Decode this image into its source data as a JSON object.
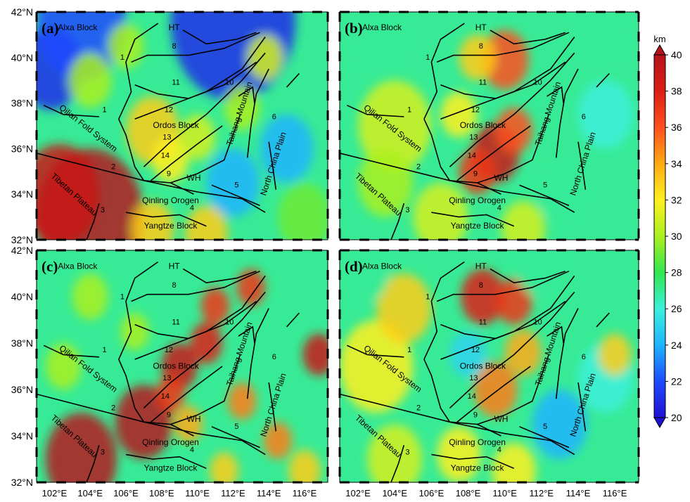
{
  "panels": [
    {
      "letter": "(a)",
      "field": [
        {
          "cx": 104.0,
          "cy": 33.0,
          "r": 3.0,
          "v": 40
        },
        {
          "cx": 102.3,
          "cy": 34.0,
          "r": 2.2,
          "v": 39
        },
        {
          "cx": 101.8,
          "cy": 39.5,
          "r": 1.8,
          "v": 21
        },
        {
          "cx": 103.5,
          "cy": 41.5,
          "r": 2.5,
          "v": 22
        },
        {
          "cx": 112.0,
          "cy": 41.6,
          "r": 3.5,
          "v": 21
        },
        {
          "cx": 104.0,
          "cy": 39.0,
          "r": 1.2,
          "v": 30
        },
        {
          "cx": 107.5,
          "cy": 36.8,
          "r": 1.5,
          "v": 33
        },
        {
          "cx": 108.5,
          "cy": 35.5,
          "r": 1.0,
          "v": 32
        },
        {
          "cx": 110.0,
          "cy": 36.5,
          "r": 1.0,
          "v": 31
        },
        {
          "cx": 113.8,
          "cy": 40.0,
          "r": 1.0,
          "v": 31
        },
        {
          "cx": 115.0,
          "cy": 36.0,
          "r": 1.5,
          "v": 24
        },
        {
          "cx": 112.0,
          "cy": 34.5,
          "r": 1.5,
          "v": 24
        },
        {
          "cx": 107.5,
          "cy": 32.5,
          "r": 1.2,
          "v": 33
        },
        {
          "cx": 110.5,
          "cy": 32.3,
          "r": 1.2,
          "v": 33
        },
        {
          "cx": 116.0,
          "cy": 33.0,
          "r": 1.5,
          "v": 29
        },
        {
          "cx": 106.0,
          "cy": 40.5,
          "r": 1.0,
          "v": 30
        },
        {
          "cx": 112.5,
          "cy": 37.8,
          "r": 1.0,
          "v": 30
        }
      ]
    },
    {
      "letter": "(b)",
      "field": [
        {
          "cx": 109.5,
          "cy": 35.8,
          "r": 1.3,
          "v": 39
        },
        {
          "cx": 108.5,
          "cy": 35.0,
          "r": 1.0,
          "v": 37
        },
        {
          "cx": 110.5,
          "cy": 36.8,
          "r": 1.0,
          "v": 36
        },
        {
          "cx": 110.0,
          "cy": 39.9,
          "r": 1.3,
          "v": 36
        },
        {
          "cx": 108.5,
          "cy": 40.0,
          "r": 1.0,
          "v": 33
        },
        {
          "cx": 104.0,
          "cy": 37.0,
          "r": 2.0,
          "v": 31
        },
        {
          "cx": 103.5,
          "cy": 34.5,
          "r": 1.5,
          "v": 30
        },
        {
          "cx": 106.5,
          "cy": 33.0,
          "r": 1.5,
          "v": 31
        },
        {
          "cx": 111.0,
          "cy": 32.5,
          "r": 1.2,
          "v": 31
        },
        {
          "cx": 115.5,
          "cy": 37.5,
          "r": 1.5,
          "v": 26
        },
        {
          "cx": 113.0,
          "cy": 34.0,
          "r": 1.2,
          "v": 27
        },
        {
          "cx": 103.0,
          "cy": 41.0,
          "r": 1.5,
          "v": 27
        },
        {
          "cx": 115.0,
          "cy": 41.0,
          "r": 1.5,
          "v": 27
        },
        {
          "cx": 107.5,
          "cy": 37.5,
          "r": 1.0,
          "v": 32
        }
      ]
    },
    {
      "letter": "(c)",
      "field": [
        {
          "cx": 103.5,
          "cy": 33.0,
          "r": 2.0,
          "v": 40
        },
        {
          "cx": 107.0,
          "cy": 34.6,
          "r": 1.6,
          "v": 40
        },
        {
          "cx": 109.0,
          "cy": 37.0,
          "r": 1.0,
          "v": 39
        },
        {
          "cx": 110.5,
          "cy": 38.0,
          "r": 0.9,
          "v": 38
        },
        {
          "cx": 111.0,
          "cy": 39.6,
          "r": 0.8,
          "v": 37
        },
        {
          "cx": 113.0,
          "cy": 40.4,
          "r": 0.8,
          "v": 37
        },
        {
          "cx": 116.8,
          "cy": 37.5,
          "r": 0.9,
          "v": 39
        },
        {
          "cx": 112.5,
          "cy": 35.5,
          "r": 0.8,
          "v": 35
        },
        {
          "cx": 114.5,
          "cy": 33.8,
          "r": 0.8,
          "v": 35
        },
        {
          "cx": 104.0,
          "cy": 40.0,
          "r": 1.0,
          "v": 30
        },
        {
          "cx": 102.5,
          "cy": 37.0,
          "r": 1.0,
          "v": 30
        },
        {
          "cx": 109.5,
          "cy": 34.5,
          "r": 0.8,
          "v": 34
        },
        {
          "cx": 116.0,
          "cy": 32.5,
          "r": 0.9,
          "v": 33
        },
        {
          "cx": 106.5,
          "cy": 38.5,
          "r": 0.8,
          "v": 30
        },
        {
          "cx": 111.5,
          "cy": 32.5,
          "r": 0.8,
          "v": 33
        },
        {
          "cx": 108.5,
          "cy": 35.8,
          "r": 0.8,
          "v": 37
        }
      ]
    },
    {
      "letter": "(d)",
      "field": [
        {
          "cx": 108.8,
          "cy": 40.0,
          "r": 1.2,
          "v": 38
        },
        {
          "cx": 110.5,
          "cy": 39.8,
          "r": 1.0,
          "v": 37
        },
        {
          "cx": 109.5,
          "cy": 36.0,
          "r": 1.2,
          "v": 35
        },
        {
          "cx": 111.0,
          "cy": 37.6,
          "r": 1.0,
          "v": 34
        },
        {
          "cx": 103.0,
          "cy": 37.0,
          "r": 2.0,
          "v": 32
        },
        {
          "cx": 104.5,
          "cy": 39.5,
          "r": 1.5,
          "v": 33
        },
        {
          "cx": 104.0,
          "cy": 33.0,
          "r": 1.5,
          "v": 31
        },
        {
          "cx": 107.5,
          "cy": 33.2,
          "r": 1.2,
          "v": 32
        },
        {
          "cx": 113.0,
          "cy": 34.5,
          "r": 1.5,
          "v": 24
        },
        {
          "cx": 108.0,
          "cy": 37.5,
          "r": 1.0,
          "v": 25
        },
        {
          "cx": 115.5,
          "cy": 36.5,
          "r": 1.5,
          "v": 26
        },
        {
          "cx": 116.0,
          "cy": 37.5,
          "r": 0.9,
          "v": 33
        },
        {
          "cx": 112.0,
          "cy": 41.5,
          "r": 1.5,
          "v": 27
        },
        {
          "cx": 110.5,
          "cy": 32.5,
          "r": 1.2,
          "v": 32
        },
        {
          "cx": 102.5,
          "cy": 41.0,
          "r": 1.2,
          "v": 27
        }
      ]
    }
  ],
  "map_labels": {
    "alxa": "Alxa Block",
    "ht": "HT",
    "ordos": "Ordos Block",
    "qilian": "Qilian Fold System",
    "tibetan": "Tibetan Plateau",
    "qinling": "Qinling Orogen",
    "yangtze": "Yangtze Block",
    "taihang": "Taihang Mountain",
    "ncp": "North China Plain",
    "wh": "WH"
  },
  "fault_numbers": {
    "f1a": "1",
    "f1b": "1",
    "f2": "2",
    "f3": "3",
    "f4": "4",
    "f5": "5",
    "f6": "6",
    "f8": "8",
    "f9": "9",
    "f10": "10",
    "f11": "11",
    "f12": "12",
    "f13": "13",
    "f14": "14"
  },
  "axes": {
    "lat_ticks": [
      "42°N",
      "40°N",
      "38°N",
      "36°N",
      "34°N",
      "32°N"
    ],
    "lon_ticks": [
      "102°E",
      "104°E",
      "106°E",
      "108°E",
      "110°E",
      "112°E",
      "114°E",
      "116°E"
    ],
    "lon_range": [
      101.0,
      117.3
    ],
    "lat_range": [
      32.0,
      42.0
    ]
  },
  "colorbar": {
    "unit": "km",
    "ticks": [
      "40",
      "38",
      "36",
      "34",
      "32",
      "30",
      "28",
      "26",
      "24",
      "22",
      "20"
    ],
    "range": [
      20,
      40
    ],
    "colors": [
      "#1e10d2",
      "#1e4bff",
      "#1eb4ff",
      "#3cf0dc",
      "#32e650",
      "#aaf01e",
      "#fff01e",
      "#ffaa14",
      "#ff501e",
      "#dc1e14",
      "#b4141e"
    ]
  }
}
